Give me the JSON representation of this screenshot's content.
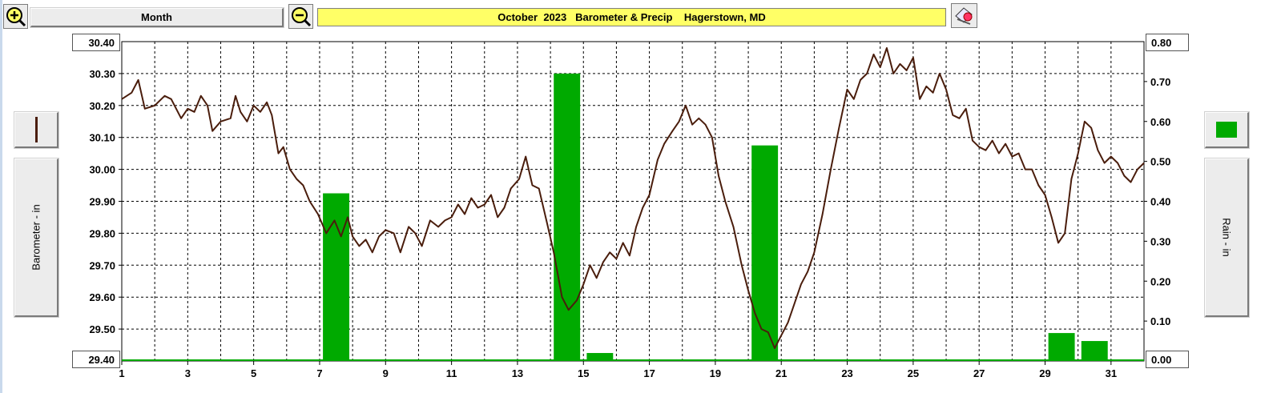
{
  "toolbar": {
    "zoom_in_icon": "zoom-in-icon",
    "zoom_out_icon": "zoom-out-icon",
    "period_label": "Month",
    "title": "October  2023   Barometer & Precip    Hagerstown, MD",
    "print_icon": "printer-icon"
  },
  "left_panel": {
    "series_swatch_color": "#4a1d0c",
    "axis_label": "Barometer - in",
    "top_value": "30.40",
    "bottom_value": "29.40"
  },
  "right_panel": {
    "series_swatch_color": "#00aa00",
    "axis_label": "Rain - in",
    "top_value": "0.80",
    "bottom_value": "0.00"
  },
  "chart_data": {
    "type": "line",
    "title": "October  2023   Barometer & Precip    Hagerstown, MD",
    "xlabel": "",
    "x_ticks": [
      "1",
      "3",
      "5",
      "7",
      "9",
      "11",
      "13",
      "15",
      "17",
      "19",
      "21",
      "23",
      "25",
      "27",
      "29",
      "31"
    ],
    "xlim": [
      1,
      32
    ],
    "grid": true,
    "series": [
      {
        "name": "Barometer - in",
        "type": "line",
        "axis": "left",
        "color": "#4a1d0c",
        "ylim": [
          29.4,
          30.4
        ],
        "y_ticks": [
          "30.30",
          "30.20",
          "30.10",
          "30.00",
          "29.90",
          "29.80",
          "29.70",
          "29.60",
          "29.50"
        ],
        "points": [
          [
            1.0,
            30.22
          ],
          [
            1.3,
            30.24
          ],
          [
            1.5,
            30.28
          ],
          [
            1.7,
            30.19
          ],
          [
            2.0,
            30.2
          ],
          [
            2.3,
            30.23
          ],
          [
            2.5,
            30.22
          ],
          [
            2.8,
            30.16
          ],
          [
            3.0,
            30.19
          ],
          [
            3.2,
            30.18
          ],
          [
            3.4,
            30.23
          ],
          [
            3.6,
            30.2
          ],
          [
            3.75,
            30.12
          ],
          [
            4.0,
            30.15
          ],
          [
            4.3,
            30.16
          ],
          [
            4.45,
            30.23
          ],
          [
            4.6,
            30.18
          ],
          [
            4.8,
            30.15
          ],
          [
            5.0,
            30.2
          ],
          [
            5.2,
            30.18
          ],
          [
            5.4,
            30.21
          ],
          [
            5.55,
            30.17
          ],
          [
            5.75,
            30.05
          ],
          [
            5.9,
            30.07
          ],
          [
            6.1,
            30.0
          ],
          [
            6.3,
            29.97
          ],
          [
            6.5,
            29.95
          ],
          [
            6.7,
            29.9
          ],
          [
            6.95,
            29.86
          ],
          [
            7.2,
            29.8
          ],
          [
            7.45,
            29.84
          ],
          [
            7.65,
            29.79
          ],
          [
            7.85,
            29.85
          ],
          [
            8.0,
            29.79
          ],
          [
            8.2,
            29.76
          ],
          [
            8.4,
            29.78
          ],
          [
            8.6,
            29.74
          ],
          [
            8.8,
            29.79
          ],
          [
            9.0,
            29.81
          ],
          [
            9.25,
            29.8
          ],
          [
            9.45,
            29.74
          ],
          [
            9.7,
            29.82
          ],
          [
            9.9,
            29.8
          ],
          [
            10.1,
            29.76
          ],
          [
            10.35,
            29.84
          ],
          [
            10.6,
            29.82
          ],
          [
            10.8,
            29.84
          ],
          [
            11.0,
            29.85
          ],
          [
            11.2,
            29.89
          ],
          [
            11.4,
            29.86
          ],
          [
            11.6,
            29.91
          ],
          [
            11.8,
            29.88
          ],
          [
            12.0,
            29.89
          ],
          [
            12.2,
            29.92
          ],
          [
            12.4,
            29.85
          ],
          [
            12.6,
            29.88
          ],
          [
            12.8,
            29.94
          ],
          [
            13.05,
            29.97
          ],
          [
            13.25,
            30.04
          ],
          [
            13.45,
            29.95
          ],
          [
            13.65,
            29.94
          ],
          [
            13.9,
            29.83
          ],
          [
            14.1,
            29.74
          ],
          [
            14.35,
            29.6
          ],
          [
            14.55,
            29.56
          ],
          [
            14.8,
            29.59
          ],
          [
            15.0,
            29.64
          ],
          [
            15.2,
            29.7
          ],
          [
            15.4,
            29.66
          ],
          [
            15.6,
            29.71
          ],
          [
            15.8,
            29.74
          ],
          [
            16.0,
            29.72
          ],
          [
            16.2,
            29.77
          ],
          [
            16.4,
            29.73
          ],
          [
            16.6,
            29.82
          ],
          [
            16.8,
            29.88
          ],
          [
            17.0,
            29.92
          ],
          [
            17.25,
            30.03
          ],
          [
            17.45,
            30.08
          ],
          [
            17.7,
            30.12
          ],
          [
            17.9,
            30.15
          ],
          [
            18.1,
            30.2
          ],
          [
            18.3,
            30.14
          ],
          [
            18.5,
            30.16
          ],
          [
            18.7,
            30.14
          ],
          [
            18.9,
            30.1
          ],
          [
            19.1,
            29.98
          ],
          [
            19.3,
            29.9
          ],
          [
            19.55,
            29.82
          ],
          [
            19.8,
            29.7
          ],
          [
            20.0,
            29.62
          ],
          [
            20.2,
            29.55
          ],
          [
            20.4,
            29.5
          ],
          [
            20.6,
            29.49
          ],
          [
            20.8,
            29.44
          ],
          [
            21.0,
            29.48
          ],
          [
            21.2,
            29.52
          ],
          [
            21.4,
            29.58
          ],
          [
            21.6,
            29.64
          ],
          [
            21.8,
            29.68
          ],
          [
            22.0,
            29.74
          ],
          [
            22.25,
            29.86
          ],
          [
            22.5,
            30.0
          ],
          [
            22.75,
            30.13
          ],
          [
            23.0,
            30.25
          ],
          [
            23.2,
            30.22
          ],
          [
            23.4,
            30.28
          ],
          [
            23.6,
            30.3
          ],
          [
            23.8,
            30.36
          ],
          [
            24.0,
            30.32
          ],
          [
            24.2,
            30.38
          ],
          [
            24.4,
            30.3
          ],
          [
            24.6,
            30.33
          ],
          [
            24.8,
            30.31
          ],
          [
            25.0,
            30.35
          ],
          [
            25.2,
            30.22
          ],
          [
            25.4,
            30.26
          ],
          [
            25.6,
            30.24
          ],
          [
            25.8,
            30.3
          ],
          [
            26.0,
            30.25
          ],
          [
            26.2,
            30.17
          ],
          [
            26.4,
            30.16
          ],
          [
            26.6,
            30.19
          ],
          [
            26.8,
            30.09
          ],
          [
            27.0,
            30.07
          ],
          [
            27.2,
            30.06
          ],
          [
            27.4,
            30.09
          ],
          [
            27.6,
            30.05
          ],
          [
            27.8,
            30.08
          ],
          [
            28.0,
            30.04
          ],
          [
            28.2,
            30.05
          ],
          [
            28.4,
            30.0
          ],
          [
            28.6,
            30.0
          ],
          [
            28.8,
            29.95
          ],
          [
            29.0,
            29.92
          ],
          [
            29.2,
            29.85
          ],
          [
            29.4,
            29.77
          ],
          [
            29.6,
            29.8
          ],
          [
            29.8,
            29.97
          ],
          [
            30.0,
            30.05
          ],
          [
            30.2,
            30.15
          ],
          [
            30.4,
            30.13
          ],
          [
            30.6,
            30.06
          ],
          [
            30.8,
            30.02
          ],
          [
            31.0,
            30.04
          ],
          [
            31.2,
            30.02
          ],
          [
            31.4,
            29.98
          ],
          [
            31.6,
            29.96
          ],
          [
            31.8,
            30.0
          ],
          [
            32.0,
            30.02
          ]
        ]
      },
      {
        "name": "Rain - in",
        "type": "bar",
        "axis": "right",
        "color": "#00aa00",
        "ylim": [
          0.0,
          0.8
        ],
        "y_ticks": [
          "0.70",
          "0.60",
          "0.50",
          "0.40",
          "0.30",
          "0.20",
          "0.10"
        ],
        "categories": [
          7,
          14,
          15,
          20,
          29,
          30
        ],
        "values": [
          0.42,
          0.72,
          0.02,
          0.54,
          0.07,
          0.05
        ]
      }
    ]
  }
}
